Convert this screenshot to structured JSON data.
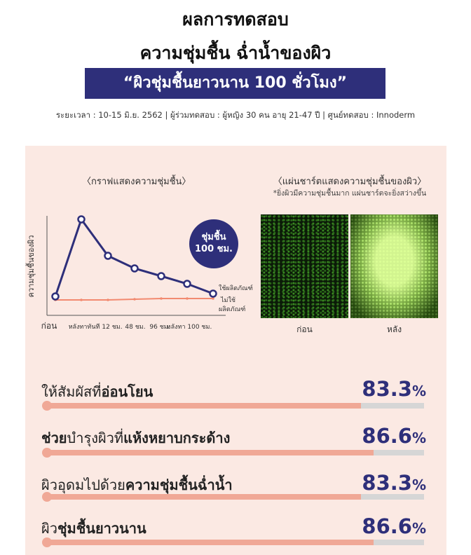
{
  "header": {
    "title_line1": "ผลการทดสอบ",
    "title_line2": "ความชุ่มชื้น ฉ่ำน้ำของผิว",
    "banner": "“ผิวชุ่มชื้นยาวนาน 100 ชั่วโมง”",
    "meta": "ระยะเวลา : 10-15 มิ.ย. 2562 | ผู้ร่วมทดสอบ : ผู้หญิง 30 คน อายุ 21-47 ปี | ศูนย์ทดสอบ : Innoderm"
  },
  "chart_data": {
    "type": "line",
    "title": "〈กราฟแสดงความชุ่มชื้น〉",
    "ylabel": "ความชุ่มชื้นของผิว",
    "categories": [
      "ก่อน",
      "หลังทาทันที",
      "12 ชม.",
      "48 ชม.",
      "96 ชม.",
      "หลังทา 100 ชม."
    ],
    "series": [
      {
        "name": "ใช้ผลิตภัณฑ์",
        "values": [
          0.05,
          1.0,
          0.6,
          0.43,
          0.3,
          0.14
        ],
        "color": "#2e2f7a"
      },
      {
        "name": "ไม่ใช้ผลิตภัณฑ์",
        "values": [
          0.0,
          0.0,
          0.0,
          0.01,
          0.02,
          0.02
        ],
        "color": "#f28a70"
      }
    ],
    "ylim": [
      0,
      1.05
    ],
    "grid": false,
    "badge": "ชุ่มชื้น 100 ชม."
  },
  "chart_extra": {
    "badge_line1": "ชุ่มชื้น",
    "badge_line2": "100 ชม.",
    "series_label_used": "ใช้ผลิตภัณฑ์",
    "series_label_notused_1": "ไม่ใช้",
    "series_label_notused_2": "ผลิตภัณฑ์"
  },
  "images": {
    "title": "〈แผ่นชาร์ตแสดงความชุ่มชื้นของผิว〉",
    "note": "*ยิ่งผิวมีความชุ่มชื้นมาก แผ่นชาร์ตจะยิ่งสว่างขึ้น",
    "before_label": "ก่อน",
    "after_label": "หลัง"
  },
  "stats": [
    {
      "pre": "ให้สัมผัสที่",
      "bold": "อ่อนโยน",
      "post": "",
      "value": "83.3",
      "pct": "%",
      "fraction": 0.833
    },
    {
      "pre": "ช่วย",
      "bold": "",
      "mid": "บำรุงผิวที่",
      "bold2": "แห้งหยาบกระด้าง",
      "value": "86.6",
      "pct": "%",
      "fraction": 0.866
    },
    {
      "pre": "ผิวอุดมไปด้วย",
      "bold": "ความชุ่มชื้นฉ่ำน้ำ",
      "post": "",
      "value": "83.3",
      "pct": "%",
      "fraction": 0.833
    },
    {
      "pre": "ผิว",
      "bold": "ชุ่มชื้นยาวนาน",
      "post": "",
      "value": "86.6",
      "pct": "%",
      "fraction": 0.866
    }
  ],
  "colors": {
    "navy": "#2e2f7a",
    "salmon": "#f0a896",
    "panel": "#fbe9e3"
  }
}
